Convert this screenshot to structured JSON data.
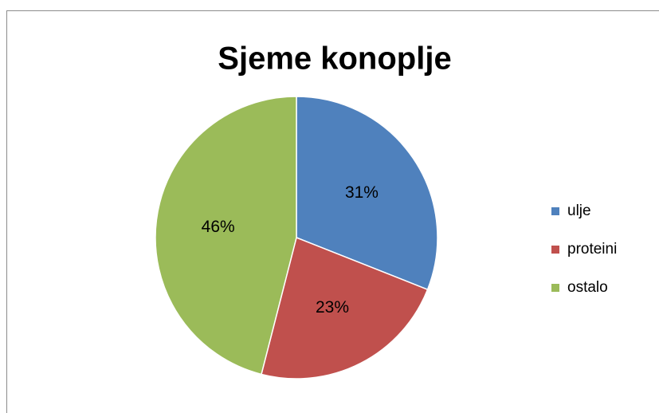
{
  "chart_data": {
    "type": "pie",
    "title": "Sjeme konoplje",
    "categories": [
      "ulje",
      "proteini",
      "ostalo"
    ],
    "values": [
      31,
      23,
      46
    ],
    "value_labels": [
      "31%",
      "23%",
      "46%"
    ],
    "colors": [
      "#4f81bd",
      "#c0504d",
      "#9bbb59"
    ],
    "legend": "right"
  }
}
